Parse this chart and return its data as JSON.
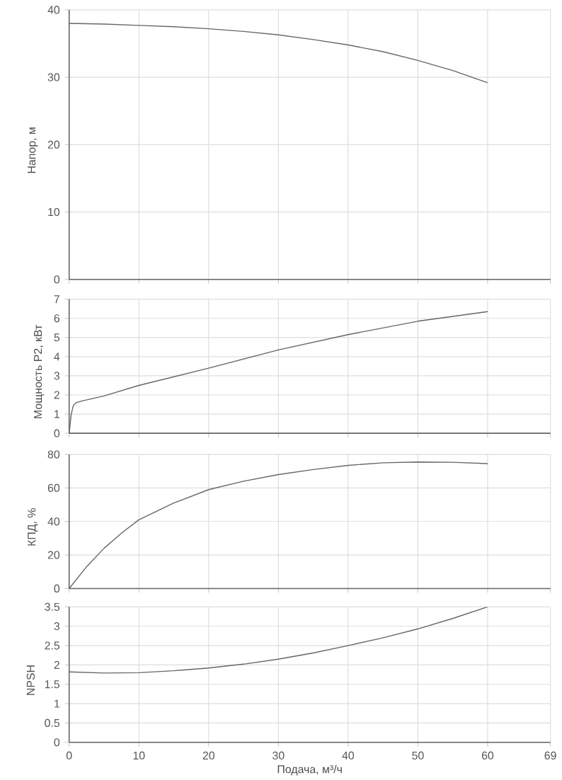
{
  "chart_data": [
    {
      "type": "line",
      "ylabel": "Напор, м",
      "xlim": [
        0,
        69
      ],
      "xticks": [
        0,
        10,
        20,
        30,
        40,
        50,
        60,
        69
      ],
      "ylim": [
        0,
        40
      ],
      "yticks": [
        0,
        10,
        20,
        30,
        40
      ],
      "grid": true,
      "tick_labels": "y",
      "series": [
        {
          "color": "#666666",
          "x": [
            0,
            5,
            10,
            15,
            20,
            25,
            30,
            35,
            40,
            45,
            50,
            55,
            60
          ],
          "values": [
            38.0,
            37.9,
            37.7,
            37.5,
            37.2,
            36.8,
            36.3,
            35.6,
            34.8,
            33.8,
            32.5,
            31.0,
            29.2
          ]
        }
      ]
    },
    {
      "type": "line",
      "ylabel": "Мощность P2, кВт",
      "xlim": [
        0,
        69
      ],
      "xticks": [
        0,
        10,
        20,
        30,
        40,
        50,
        60,
        69
      ],
      "ylim": [
        0,
        7
      ],
      "yticks": [
        0,
        1,
        2,
        3,
        4,
        5,
        6,
        7
      ],
      "grid": true,
      "tick_labels": "y",
      "series": [
        {
          "color": "#666666",
          "x": [
            0,
            0.3,
            0.6,
            1,
            2,
            5,
            10,
            20,
            30,
            40,
            50,
            55,
            60
          ],
          "values": [
            0,
            1.0,
            1.45,
            1.6,
            1.7,
            1.95,
            2.5,
            3.4,
            4.35,
            5.15,
            5.85,
            6.1,
            6.35
          ]
        }
      ]
    },
    {
      "type": "line",
      "ylabel": "КПД, %",
      "xlim": [
        0,
        69
      ],
      "xticks": [
        0,
        10,
        20,
        30,
        40,
        50,
        60,
        69
      ],
      "ylim": [
        0,
        80
      ],
      "yticks": [
        0,
        20,
        40,
        60,
        80
      ],
      "grid": true,
      "tick_labels": "y",
      "series": [
        {
          "color": "#666666",
          "x": [
            0,
            2.5,
            5,
            7.5,
            10,
            15,
            20,
            25,
            30,
            35,
            40,
            45,
            50,
            55,
            60
          ],
          "values": [
            0,
            13,
            24,
            33,
            41,
            51,
            59,
            64,
            68,
            71,
            73.5,
            75,
            75.5,
            75.3,
            74.5
          ]
        }
      ]
    },
    {
      "type": "line",
      "xlabel": "Подача, м³/ч",
      "ylabel": "NPSH",
      "xlim": [
        0,
        69
      ],
      "xticks": [
        0,
        10,
        20,
        30,
        40,
        50,
        60,
        69
      ],
      "ylim": [
        0,
        3.5
      ],
      "yticks": [
        0,
        0.5,
        1,
        1.5,
        2,
        2.5,
        3,
        3.5
      ],
      "grid": true,
      "series": [
        {
          "color": "#666666",
          "x": [
            0,
            5,
            10,
            15,
            20,
            25,
            30,
            35,
            40,
            45,
            50,
            55,
            60
          ],
          "values": [
            1.82,
            1.79,
            1.8,
            1.85,
            1.92,
            2.02,
            2.15,
            2.31,
            2.5,
            2.7,
            2.93,
            3.2,
            3.5
          ]
        }
      ]
    }
  ]
}
